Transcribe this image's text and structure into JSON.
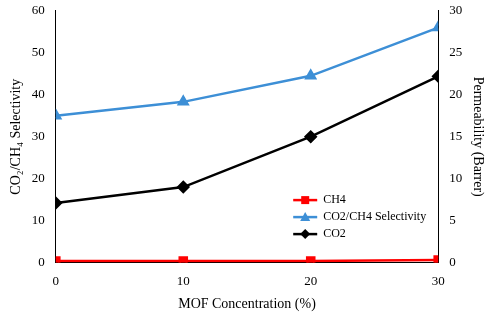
{
  "chart_data": {
    "type": "line",
    "x_label": "MOF Concentration (%)",
    "y_label": "CO₂/CH₄ Selectivity",
    "y2_label": "Permeability (Barrer)",
    "x": [
      0,
      10,
      20,
      30
    ],
    "xlim": [
      0,
      30
    ],
    "xticks": [
      0,
      10,
      20,
      30
    ],
    "ylim": [
      0,
      60
    ],
    "yticks": [
      0,
      10,
      20,
      30,
      40,
      50,
      60
    ],
    "y2lim": [
      0,
      30
    ],
    "y2ticks": [
      0,
      5,
      10,
      15,
      20,
      25,
      30
    ],
    "grid": false,
    "legend": "bottom-right",
    "series": [
      {
        "name": "CH4",
        "color": "#ff0000",
        "marker": "square",
        "axis": "y2",
        "values": [
          0.2,
          0.2,
          0.2,
          0.3
        ]
      },
      {
        "name": "CO2/CH4 Selectivity",
        "color": "#3d8fd6",
        "marker": "triangle",
        "axis": "y",
        "values": [
          35,
          38.3,
          44.5,
          56
        ]
      },
      {
        "name": "CO2",
        "color": "#000000",
        "marker": "diamond",
        "axis": "y2",
        "values": [
          7.1,
          9,
          15,
          22.2
        ]
      }
    ]
  }
}
